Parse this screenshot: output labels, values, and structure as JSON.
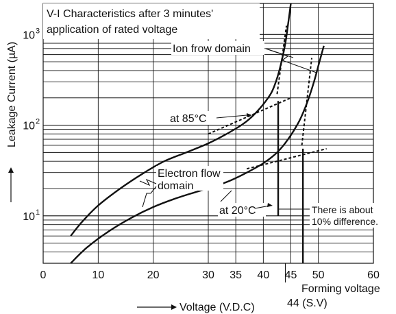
{
  "chart_data": {
    "type": "line",
    "title_lines": [
      "V-I Characteristics after 3 minutes'",
      "application of rated voltage"
    ],
    "xlabel": "Voltage (V.D.C)",
    "ylabel": "Leakage Current (µA)",
    "y_scale": "log",
    "xlim": [
      0,
      60
    ],
    "ylim": [
      3,
      2200
    ],
    "x_ticks": [
      {
        "value": 0,
        "label": "0"
      },
      {
        "value": 10,
        "label": "10"
      },
      {
        "value": 20,
        "label": "20"
      },
      {
        "value": 30,
        "label": "30"
      },
      {
        "value": 35,
        "label": "35"
      },
      {
        "value": 40,
        "label": "40"
      },
      {
        "value": 45,
        "label": "45"
      },
      {
        "value": 50,
        "label": "50"
      },
      {
        "value": 60,
        "label": "60"
      }
    ],
    "y_ticks": [
      {
        "value": 10,
        "label": "10"
      },
      {
        "value": 100,
        "label": "10"
      },
      {
        "value": 1000,
        "label": "10"
      }
    ],
    "y_tick_exponents": [
      "1",
      "2",
      "3"
    ],
    "grid": true,
    "series": [
      {
        "name": "at 85°C",
        "x": [
          5,
          7,
          10,
          14,
          18,
          22,
          26,
          30,
          33,
          36,
          38,
          40,
          41.5,
          42.5,
          43.3,
          44,
          44.5,
          45
        ],
        "y": [
          6,
          8.5,
          13,
          20,
          29,
          40,
          50,
          63,
          78,
          100,
          125,
          170,
          230,
          330,
          500,
          800,
          1300,
          2200
        ]
      },
      {
        "name": "at 20°C",
        "x": [
          5,
          8,
          12,
          16,
          20,
          24,
          28,
          31,
          34,
          37,
          40,
          42.5,
          44.5,
          46.5,
          48,
          49.2,
          50.2,
          51
        ],
        "y": [
          3,
          4.5,
          6.8,
          9.5,
          12.5,
          15.5,
          18.5,
          21,
          24.5,
          30,
          38,
          50,
          70,
          110,
          180,
          300,
          500,
          750
        ]
      }
    ],
    "dashed_extrapolations": [
      {
        "x": [
          30,
          45
        ],
        "y": [
          80,
          200
        ]
      },
      {
        "x": [
          37,
          51.5
        ],
        "y": [
          33,
          55
        ]
      },
      {
        "x": [
          42.5,
          44.2
        ],
        "y": [
          220,
          1250
        ]
      },
      {
        "x": [
          47,
          48.8
        ],
        "y": [
          60,
          550
        ]
      }
    ],
    "breakdown_markers": [
      {
        "x": 42.7,
        "y_from": 10,
        "y_to": 185
      },
      {
        "x": 47.2,
        "y_from": 2,
        "y_to": 55
      }
    ],
    "annotations": {
      "ion": "Ion frow domain",
      "at85": "at 85°C",
      "electron_line1": "Electron flow",
      "electron_line2": "domain",
      "at20": "at 20°C",
      "diff_line1": "There is about",
      "diff_line2": "10% difference.",
      "forming": "Forming voltage",
      "forming_value": "44 (S.V)"
    }
  }
}
